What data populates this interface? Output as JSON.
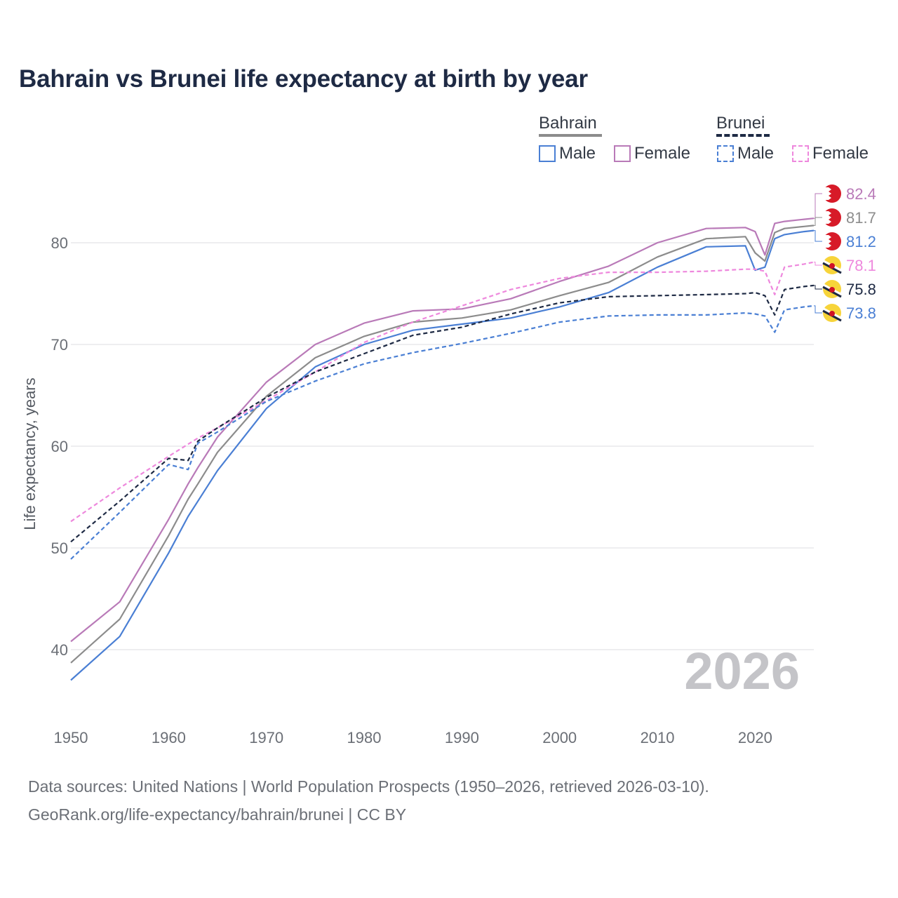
{
  "title": "Bahrain vs Brunei life expectancy at birth by year",
  "legend": {
    "groups": [
      {
        "name": "Bahrain",
        "style": "solid",
        "color": "#888888",
        "items": [
          {
            "label": "Male",
            "color": "#4a7fd4"
          },
          {
            "label": "Female",
            "color": "#b97ab8"
          }
        ]
      },
      {
        "name": "Brunei",
        "style": "dashed",
        "color": "#1e2a44",
        "items": [
          {
            "label": "Male",
            "color": "#4a7fd4"
          },
          {
            "label": "Female",
            "color": "#ee88dd"
          }
        ]
      }
    ]
  },
  "footer": {
    "line1": "Data sources: United Nations | World Population Prospects (1950–2026, retrieved 2026-03-10).",
    "line2": "GeoRank.org/life-expectancy/bahrain/brunei | CC BY"
  },
  "chart_data": {
    "type": "line",
    "title": "Bahrain vs Brunei life expectancy at birth by year",
    "xlabel": "",
    "ylabel": "Life expectancy, years",
    "xlim": [
      1950,
      2026
    ],
    "ylim": [
      35,
      86
    ],
    "yticks": [
      40,
      50,
      60,
      70,
      80
    ],
    "xticks": [
      1950,
      1960,
      1970,
      1980,
      1990,
      2000,
      2010,
      2020
    ],
    "grid": true,
    "watermark_year": "2026",
    "x": [
      1950,
      1955,
      1960,
      1962,
      1963,
      1965,
      1970,
      1975,
      1980,
      1985,
      1990,
      1995,
      2000,
      2005,
      2010,
      2015,
      2019,
      2020,
      2021,
      2022,
      2023,
      2025,
      2026
    ],
    "series": [
      {
        "name": "Bahrain Female",
        "country": "Bahrain",
        "sex": "Female",
        "color": "#b97ab8",
        "dash": false,
        "values": [
          40.8,
          44.7,
          52.8,
          56.3,
          57.9,
          60.9,
          66.3,
          70.0,
          72.1,
          73.3,
          73.5,
          74.5,
          76.2,
          77.7,
          80.0,
          81.4,
          81.5,
          81.1,
          78.8,
          81.9,
          82.1,
          82.3,
          82.4
        ],
        "end_label": "82.4",
        "label_color": "#b97ab8"
      },
      {
        "name": "Bahrain Total",
        "country": "Bahrain",
        "sex": "Total",
        "color": "#8c8c8c",
        "dash": false,
        "values": [
          38.7,
          43.0,
          51.2,
          54.8,
          56.3,
          59.4,
          64.9,
          68.7,
          70.8,
          72.2,
          72.6,
          73.4,
          74.8,
          76.1,
          78.6,
          80.4,
          80.6,
          79.0,
          78.2,
          81.0,
          81.4,
          81.6,
          81.7
        ],
        "end_label": "81.7",
        "label_color": "#8c8c8c"
      },
      {
        "name": "Bahrain Male",
        "country": "Bahrain",
        "sex": "Male",
        "color": "#4a7fd4",
        "dash": false,
        "values": [
          37.0,
          41.3,
          49.5,
          53.1,
          54.6,
          57.6,
          63.7,
          67.8,
          70.0,
          71.4,
          72.0,
          72.6,
          73.7,
          75.1,
          77.6,
          79.6,
          79.7,
          77.3,
          77.6,
          80.4,
          80.8,
          81.1,
          81.2
        ],
        "end_label": "81.2",
        "label_color": "#4a7fd4"
      },
      {
        "name": "Brunei Female",
        "country": "Brunei",
        "sex": "Female",
        "color": "#ee88dd",
        "dash": true,
        "values": [
          52.6,
          55.9,
          59.0,
          60.2,
          60.8,
          61.8,
          64.5,
          67.3,
          70.2,
          72.2,
          73.8,
          75.4,
          76.5,
          77.1,
          77.1,
          77.2,
          77.4,
          77.4,
          77.2,
          74.9,
          77.6,
          77.9,
          78.1
        ],
        "end_label": "78.1",
        "label_color": "#ee88dd"
      },
      {
        "name": "Brunei Total",
        "country": "Brunei",
        "sex": "Total",
        "color": "#1e2a44",
        "dash": true,
        "values": [
          50.6,
          54.6,
          58.8,
          58.6,
          60.5,
          61.8,
          64.8,
          67.3,
          69.1,
          70.9,
          71.7,
          73.0,
          74.1,
          74.7,
          74.8,
          74.9,
          75.0,
          75.1,
          74.8,
          72.9,
          75.4,
          75.7,
          75.8
        ],
        "end_label": "75.8",
        "label_color": "#1e2a44"
      },
      {
        "name": "Brunei Male",
        "country": "Brunei",
        "sex": "Male",
        "color": "#4a7fd4",
        "dash": true,
        "values": [
          48.9,
          53.5,
          58.2,
          57.7,
          60.3,
          61.4,
          64.4,
          66.4,
          68.1,
          69.2,
          70.1,
          71.1,
          72.2,
          72.8,
          72.9,
          72.9,
          73.1,
          73.0,
          72.8,
          71.2,
          73.4,
          73.7,
          73.8
        ],
        "end_label": "73.8",
        "label_color": "#4a7fd4"
      }
    ]
  }
}
